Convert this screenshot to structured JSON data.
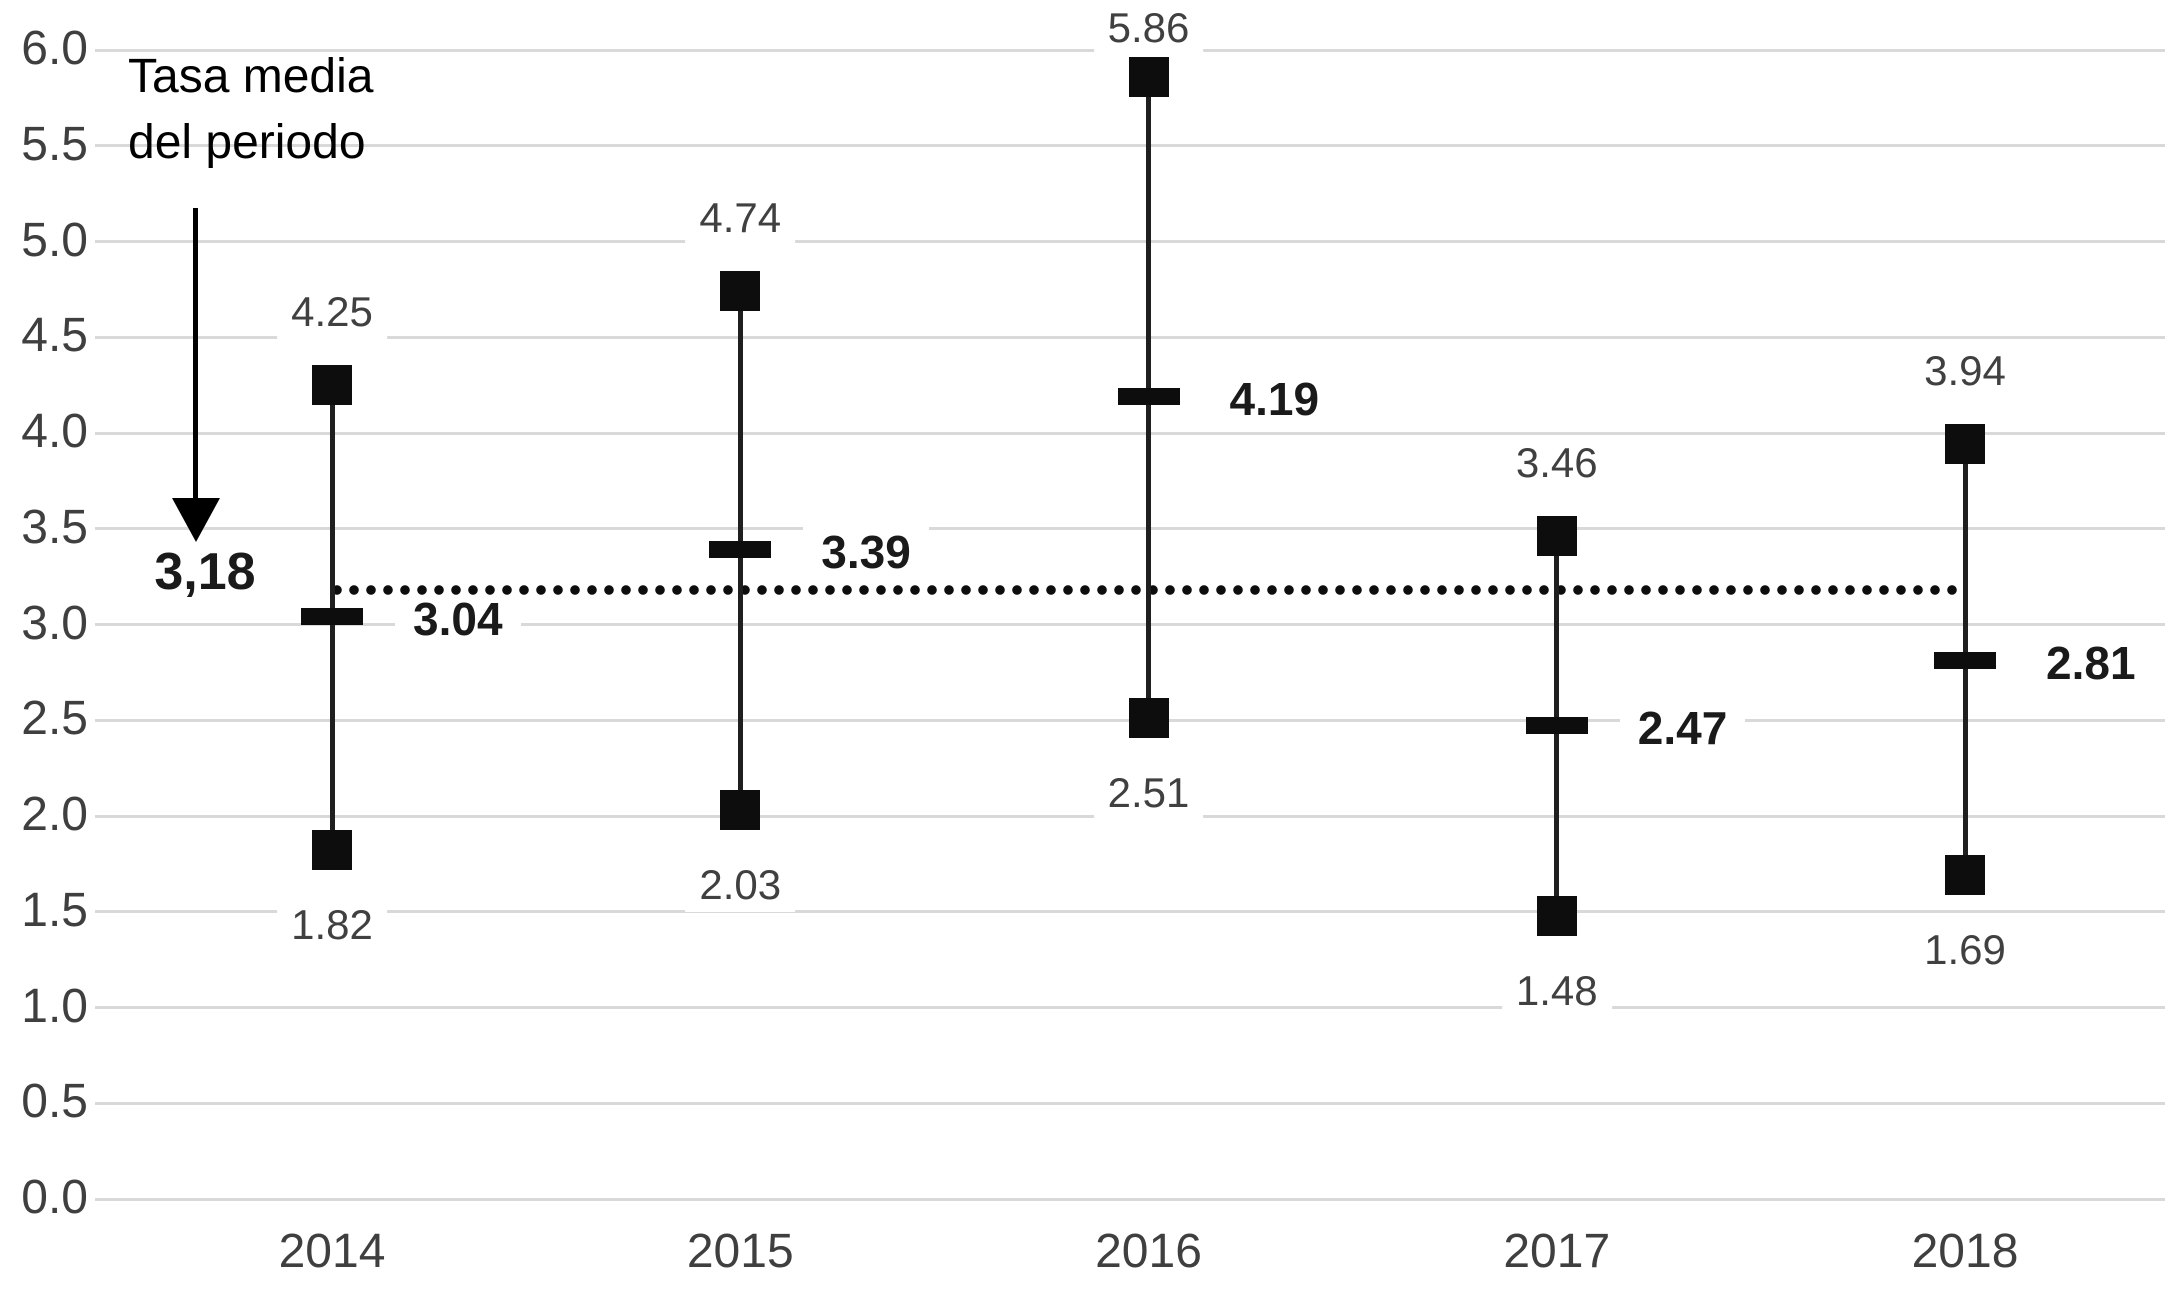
{
  "chart_data": {
    "type": "scatter",
    "variant": "high-low range columns with square endpoint markers and mean tick markers (stock-style chart)",
    "title": "",
    "xlabel": "",
    "ylabel": "",
    "categories": [
      "2014",
      "2015",
      "2016",
      "2017",
      "2018"
    ],
    "series": [
      {
        "name": "high",
        "marker": "filled-square",
        "values": [
          4.25,
          4.74,
          5.86,
          3.46,
          3.94
        ],
        "labels": [
          "4.25",
          "4.74",
          "5.86",
          "3.46",
          "3.94"
        ]
      },
      {
        "name": "low",
        "marker": "filled-square",
        "values": [
          1.82,
          2.03,
          2.51,
          1.48,
          1.69
        ],
        "labels": [
          "1.82",
          "2.03",
          "2.51",
          "1.48",
          "1.69"
        ]
      },
      {
        "name": "mean",
        "marker": "horizontal-tick",
        "values": [
          3.04,
          3.39,
          4.19,
          2.47,
          2.81
        ],
        "labels": [
          "3.04",
          "3.39",
          "4.19",
          "2.47",
          "2.81"
        ]
      }
    ],
    "reference_line": {
      "value": 3.18,
      "label": "3,18",
      "style": "dotted horizontal line spanning from 2014 column to 2018 column"
    },
    "annotation": {
      "line1": "Tasa media",
      "line2": "del periodo",
      "pointer": "downward arrow from text toward reference-line label"
    },
    "y_axis": {
      "min": 0.0,
      "max": 6.0,
      "step": 0.5,
      "tick_labels": [
        "6.0",
        "5.5",
        "5.0",
        "4.5",
        "4.0",
        "3.5",
        "3.0",
        "2.5",
        "2.0",
        "1.5",
        "1.0",
        "0.5",
        "0.0"
      ]
    },
    "x_axis": {
      "tick_labels": [
        "2014",
        "2015",
        "2016",
        "2017",
        "2018"
      ]
    },
    "grid": "horizontal gridlines every 0.5 units",
    "legend": "none"
  },
  "colors": {
    "background": "#ffffff",
    "gridline": "#d9d9d9",
    "axis_text": "#3f3f3f",
    "data_label_text": "#404040",
    "mean_label_text": "#1a1a1a",
    "marker": "#0d0d0d",
    "range_line": "#1f1f1f",
    "reference_dots": "#0d0d0d",
    "annotation_text": "#000000"
  }
}
